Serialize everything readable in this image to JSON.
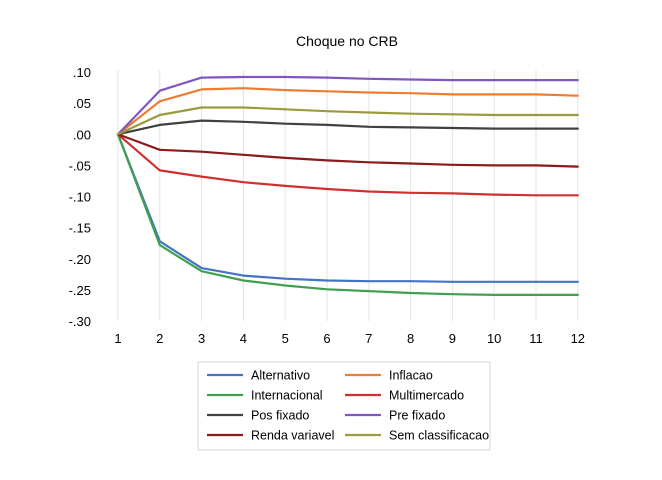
{
  "chart_data": {
    "type": "line",
    "title": "Choque no CRB",
    "xlabel": "",
    "ylabel": "",
    "x": [
      1,
      2,
      3,
      4,
      5,
      6,
      7,
      8,
      9,
      10,
      11,
      12
    ],
    "x_tick_labels": [
      "1",
      "2",
      "3",
      "4",
      "5",
      "6",
      "7",
      "8",
      "9",
      "10",
      "11",
      "12"
    ],
    "ylim": [
      -0.3,
      0.1
    ],
    "y_ticks": [
      0.1,
      0.05,
      0.0,
      -0.05,
      -0.1,
      -0.15,
      -0.2,
      -0.25,
      -0.3
    ],
    "y_tick_labels": [
      ".10",
      ".05",
      ".00",
      "-.05",
      "-.10",
      "-.15",
      "-.20",
      "-.25",
      "-.30"
    ],
    "grid": "vertical",
    "legend_position": "bottom",
    "series": [
      {
        "name": "Alternativo",
        "color": "#4472C4",
        "values": [
          0.0,
          -0.172,
          -0.215,
          -0.227,
          -0.232,
          -0.235,
          -0.236,
          -0.236,
          -0.237,
          -0.237,
          -0.237,
          -0.237
        ]
      },
      {
        "name": "Inflacao",
        "color": "#ED7D31",
        "values": [
          0.0,
          0.053,
          0.072,
          0.074,
          0.071,
          0.069,
          0.067,
          0.066,
          0.064,
          0.064,
          0.064,
          0.062
        ]
      },
      {
        "name": "Internacional",
        "color": "#3FA050",
        "values": [
          0.0,
          -0.178,
          -0.22,
          -0.235,
          -0.243,
          -0.249,
          -0.252,
          -0.255,
          -0.257,
          -0.258,
          -0.258,
          -0.258
        ]
      },
      {
        "name": "Multimercado",
        "color": "#D03030",
        "values": [
          0.0,
          -0.058,
          -0.068,
          -0.077,
          -0.083,
          -0.088,
          -0.092,
          -0.094,
          -0.095,
          -0.097,
          -0.098,
          -0.098
        ]
      },
      {
        "name": "Pos fixado",
        "color": "#404040",
        "values": [
          0.0,
          0.015,
          0.022,
          0.02,
          0.017,
          0.015,
          0.012,
          0.011,
          0.01,
          0.009,
          0.009,
          0.009
        ]
      },
      {
        "name": "Pre fixado",
        "color": "#7E57C2",
        "values": [
          0.0,
          0.07,
          0.091,
          0.092,
          0.092,
          0.091,
          0.089,
          0.088,
          0.087,
          0.087,
          0.087,
          0.087
        ]
      },
      {
        "name": "Renda variavel",
        "color": "#8B1A1A",
        "values": [
          0.0,
          -0.025,
          -0.028,
          -0.033,
          -0.038,
          -0.042,
          -0.045,
          -0.047,
          -0.049,
          -0.05,
          -0.05,
          -0.052
        ]
      },
      {
        "name": "Sem classificacao",
        "color": "#9C9A3C",
        "values": [
          0.0,
          0.031,
          0.043,
          0.043,
          0.04,
          0.037,
          0.035,
          0.033,
          0.032,
          0.031,
          0.031,
          0.031
        ]
      }
    ]
  }
}
